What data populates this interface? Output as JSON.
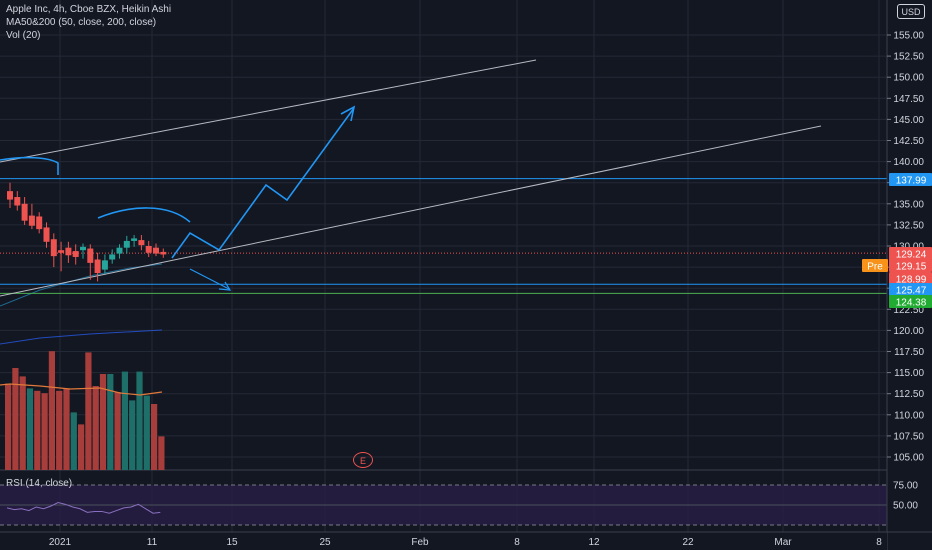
{
  "legend": {
    "line1": "Apple Inc, 4h, Cboe BZX, Heikin Ashi",
    "line2": "MA50&200 (50, close, 200, close)",
    "line3": "Vol (20)"
  },
  "rsi_label": "RSI (14, close)",
  "currency_button": "USD",
  "earnings_badge": "E",
  "colors": {
    "background": "#131722",
    "grid": "#242936",
    "axis_text": "#d1d4dc",
    "up": "#26a69a",
    "down": "#ef5350",
    "volume_up": "#1e6f69",
    "volume_down": "#a83e3b",
    "trendline": "#b7bac2",
    "drawing_blue": "#2196f3",
    "horizontal_blue": "#2196f3",
    "horizontal_green": "#4caf50",
    "rsi_band": "#2a1f48",
    "rsi_line": "#8a6fbf",
    "pre_badge": "#f7931a",
    "price_badge_red": "#ef5350",
    "price_badge_blue": "#2196f3",
    "price_badge_green": "#22ab32"
  },
  "chart_data": {
    "type": "candlestick",
    "price_axis": {
      "ticks": [
        "155.00",
        "152.50",
        "150.00",
        "147.50",
        "145.00",
        "142.50",
        "140.00",
        "137.50",
        "135.00",
        "132.50",
        "130.00",
        "127.50",
        "125.00",
        "122.50",
        "120.00",
        "117.50",
        "115.00",
        "112.50",
        "110.00",
        "107.50",
        "105.00"
      ],
      "range": [
        104,
        156.5
      ]
    },
    "rsi_axis": {
      "ticks": [
        "75.00",
        "50.00"
      ]
    },
    "time_axis": {
      "labels": [
        "2021",
        "11",
        "15",
        "25",
        "Feb",
        "8",
        "12",
        "22",
        "Mar",
        "8"
      ]
    },
    "price_tags": [
      {
        "label": "137.99",
        "value": 137.99,
        "style": "blue"
      },
      {
        "label": "129.24",
        "value": 129.24,
        "style": "red"
      },
      {
        "label": "129.15",
        "value": 129.15,
        "style": "pre",
        "prefix": "Pre"
      },
      {
        "label": "128.99",
        "value": 128.99,
        "style": "red"
      },
      {
        "label": "125.47",
        "value": 125.47,
        "style": "blue"
      },
      {
        "label": "124.38",
        "value": 124.38,
        "style": "green"
      }
    ],
    "candles": [
      {
        "o": 136.5,
        "h": 137.5,
        "c": 135.5,
        "l": 134.5
      },
      {
        "o": 135.8,
        "h": 136.5,
        "c": 134.8,
        "l": 134.2
      },
      {
        "o": 135.0,
        "h": 135.8,
        "c": 133.0,
        "l": 132.5
      },
      {
        "o": 133.6,
        "h": 135.0,
        "c": 132.4,
        "l": 132.0
      },
      {
        "o": 133.5,
        "h": 134.0,
        "c": 132.0,
        "l": 131.5
      },
      {
        "o": 132.2,
        "h": 132.8,
        "c": 130.5,
        "l": 129.8
      },
      {
        "o": 130.8,
        "h": 131.5,
        "c": 128.8,
        "l": 127.5
      },
      {
        "o": 129.5,
        "h": 130.5,
        "c": 129.2,
        "l": 127.0
      },
      {
        "o": 129.8,
        "h": 130.5,
        "c": 128.9,
        "l": 128.0
      },
      {
        "o": 129.4,
        "h": 130.2,
        "c": 128.7,
        "l": 127.8
      },
      {
        "o": 129.5,
        "h": 130.3,
        "c": 129.9,
        "l": 128.5
      },
      {
        "o": 129.7,
        "h": 130.2,
        "c": 128.0,
        "l": 126.0
      },
      {
        "o": 128.4,
        "h": 129.2,
        "c": 126.8,
        "l": 125.8
      },
      {
        "o": 127.2,
        "h": 129.0,
        "c": 128.3,
        "l": 126.7
      },
      {
        "o": 128.4,
        "h": 129.6,
        "c": 129.0,
        "l": 127.9
      },
      {
        "o": 129.1,
        "h": 130.2,
        "c": 129.8,
        "l": 128.5
      },
      {
        "o": 129.8,
        "h": 131.2,
        "c": 130.6,
        "l": 129.1
      },
      {
        "o": 130.6,
        "h": 131.3,
        "c": 130.9,
        "l": 129.9
      },
      {
        "o": 130.7,
        "h": 131.3,
        "c": 130.1,
        "l": 129.5
      },
      {
        "o": 130.0,
        "h": 130.6,
        "c": 129.2,
        "l": 128.7
      },
      {
        "o": 129.8,
        "h": 130.3,
        "c": 129.1,
        "l": 128.8
      },
      {
        "o": 129.3,
        "h": 129.7,
        "c": 129.0,
        "l": 128.6
      }
    ],
    "volume": [
      {
        "v": 0.72,
        "d": "down"
      },
      {
        "v": 0.85,
        "d": "down"
      },
      {
        "v": 0.78,
        "d": "down"
      },
      {
        "v": 0.68,
        "d": "up"
      },
      {
        "v": 0.66,
        "d": "down"
      },
      {
        "v": 0.64,
        "d": "down"
      },
      {
        "v": 0.99,
        "d": "down"
      },
      {
        "v": 0.66,
        "d": "down"
      },
      {
        "v": 0.68,
        "d": "down"
      },
      {
        "v": 0.48,
        "d": "up"
      },
      {
        "v": 0.38,
        "d": "down"
      },
      {
        "v": 0.98,
        "d": "down"
      },
      {
        "v": 0.7,
        "d": "down"
      },
      {
        "v": 0.8,
        "d": "down"
      },
      {
        "v": 0.8,
        "d": "up"
      },
      {
        "v": 0.65,
        "d": "down"
      },
      {
        "v": 0.82,
        "d": "up"
      },
      {
        "v": 0.58,
        "d": "up"
      },
      {
        "v": 0.82,
        "d": "up"
      },
      {
        "v": 0.62,
        "d": "up"
      },
      {
        "v": 0.55,
        "d": "down"
      },
      {
        "v": 0.28,
        "d": "down"
      }
    ],
    "rsi": [
      56,
      54,
      55,
      53,
      57,
      55,
      58,
      62,
      60,
      57,
      55,
      51,
      52,
      52,
      50,
      53,
      56,
      57,
      60,
      55,
      50,
      51
    ]
  }
}
